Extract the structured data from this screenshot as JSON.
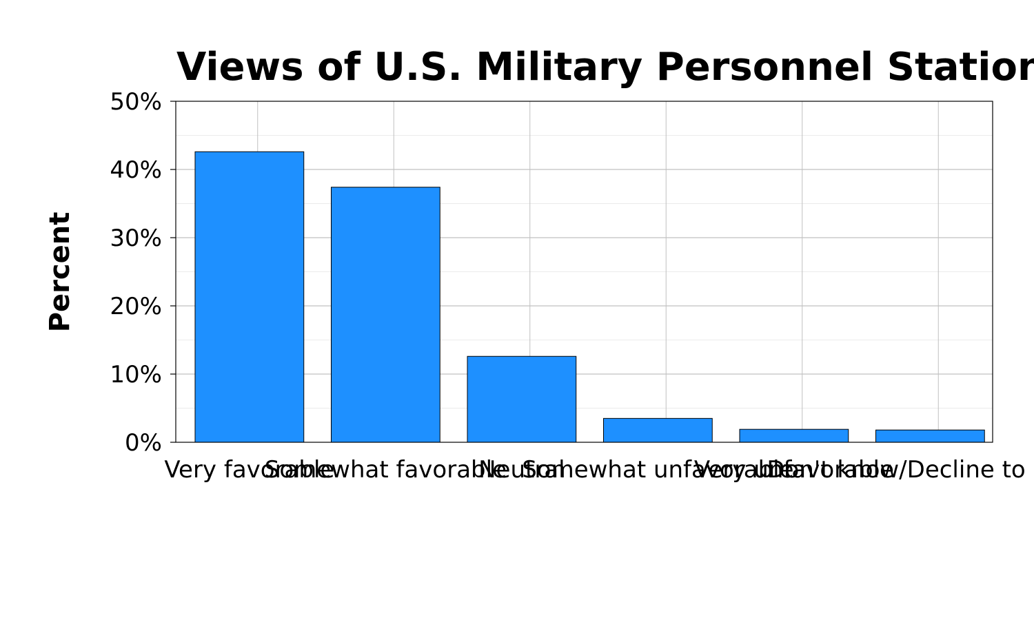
{
  "chart_data": {
    "type": "bar",
    "title": "Views of U.S. Military Personnel Stationed in Po",
    "xlabel": "",
    "ylabel": "Percent",
    "categories": [
      "Very favorable",
      "Somewhat favorable",
      "Neutral",
      "Somewhat unfavorable",
      "Very unfavorable",
      "Don't know/Decline to answ"
    ],
    "values": [
      42.6,
      37.4,
      12.6,
      3.5,
      1.9,
      1.8
    ],
    "ylim": [
      0,
      50
    ],
    "yticks": [
      0,
      10,
      20,
      30,
      40,
      50
    ],
    "ytick_labels": [
      "0%",
      "10%",
      "20%",
      "30%",
      "40%",
      "50%"
    ],
    "grid": true,
    "bar_color": "#1E90FF",
    "bar_edge_color": "#000000"
  }
}
